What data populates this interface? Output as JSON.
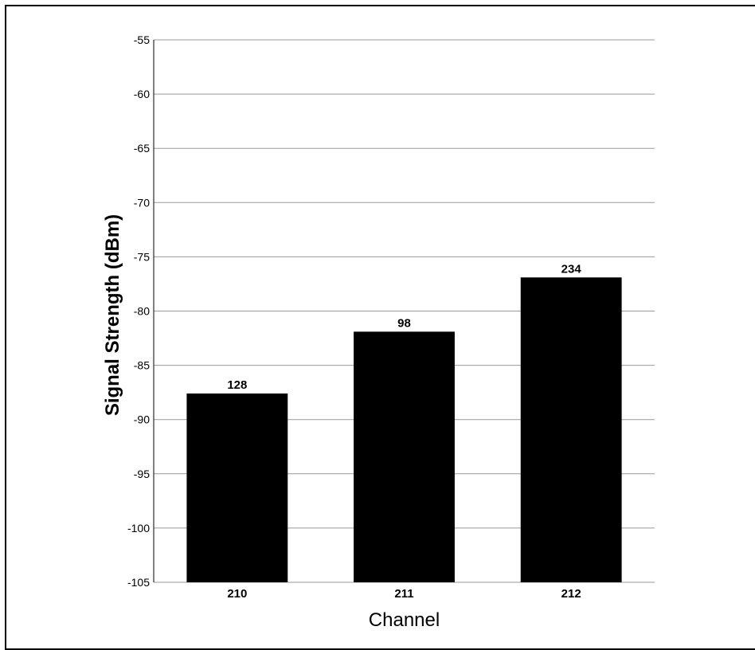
{
  "chart_data": {
    "type": "bar",
    "title": "",
    "xlabel": "Channel",
    "ylabel": "Signal Strength (dBm)",
    "categories": [
      "210",
      "211",
      "212"
    ],
    "values": [
      -87.6,
      -81.9,
      -76.9
    ],
    "data_labels": [
      "128",
      "98",
      "234"
    ],
    "ylim": [
      -105,
      -55
    ],
    "yticks": [
      -55,
      -60,
      -65,
      -70,
      -75,
      -80,
      -85,
      -90,
      -95,
      -100,
      -105
    ],
    "grid": true,
    "legend": "none",
    "colors": {
      "bar": "#000000",
      "grid": "#999999",
      "background": "#ffffff"
    }
  }
}
